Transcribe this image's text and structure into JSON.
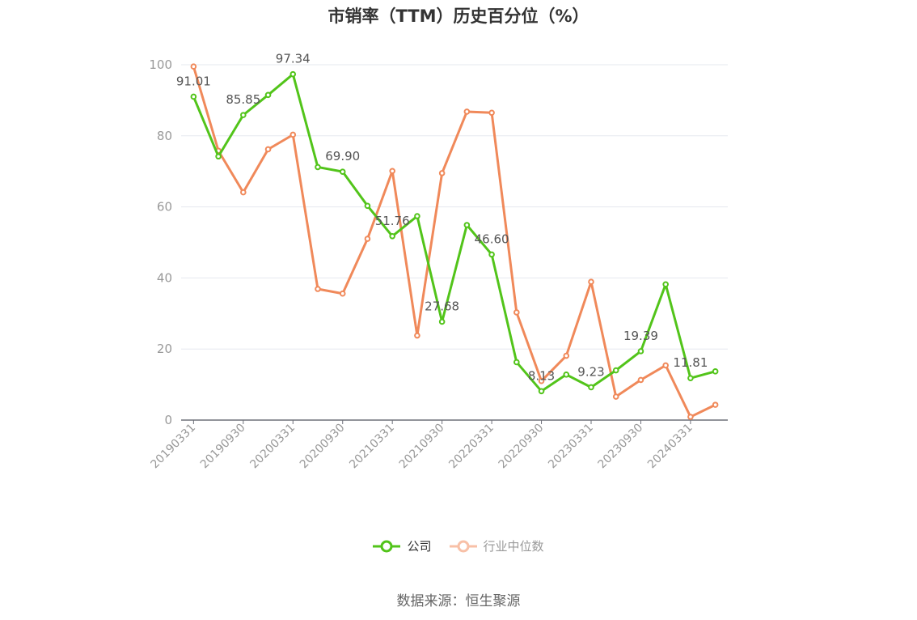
{
  "chart_data": {
    "type": "line",
    "title": "市销率（TTM）历史百分位（%）",
    "source": "数据来源：恒生聚源",
    "ylim": [
      0,
      100
    ],
    "yticks": [
      0,
      20,
      40,
      60,
      80,
      100
    ],
    "grid": true,
    "legend_position": "bottom",
    "x": [
      "20190331",
      "20190630",
      "20190930",
      "20191231",
      "20200331",
      "20200630",
      "20200930",
      "20201231",
      "20210331",
      "20210630",
      "20210930",
      "20211231",
      "20220331",
      "20220630",
      "20220930",
      "20221231",
      "20230331",
      "20230630",
      "20230930",
      "20231231",
      "20240331",
      "20240630"
    ],
    "xtick_labels": [
      "20190331",
      "20190930",
      "20200331",
      "20200930",
      "20210331",
      "20210930",
      "20220331",
      "20220930",
      "20230331",
      "20230930",
      "20240331"
    ],
    "series": [
      {
        "name": "公司",
        "color": "#52c41a",
        "values": [
          91.01,
          74.2,
          85.85,
          91.5,
          97.34,
          71.2,
          69.9,
          60.3,
          51.76,
          57.4,
          27.68,
          54.9,
          46.6,
          16.3,
          8.13,
          12.8,
          9.23,
          14.0,
          19.39,
          38.2,
          11.81,
          13.7
        ],
        "data_labels": {
          "0": "91.01",
          "2": "85.85",
          "4": "97.34",
          "6": "69.90",
          "8": "51.76",
          "10": "27.68",
          "12": "46.60",
          "14": "8.13",
          "16": "9.23",
          "18": "19.39",
          "20": "11.81"
        }
      },
      {
        "name": "行业中位数",
        "color": "#f0895a",
        "values": [
          99.5,
          75.8,
          64.1,
          76.2,
          80.3,
          36.9,
          35.6,
          51.0,
          70.1,
          23.8,
          69.5,
          86.8,
          86.5,
          30.3,
          11.0,
          18.1,
          38.9,
          6.6,
          11.3,
          15.4,
          0.9,
          4.3
        ]
      }
    ]
  },
  "legend": {
    "company": "公司",
    "industry": "行业中位数"
  }
}
